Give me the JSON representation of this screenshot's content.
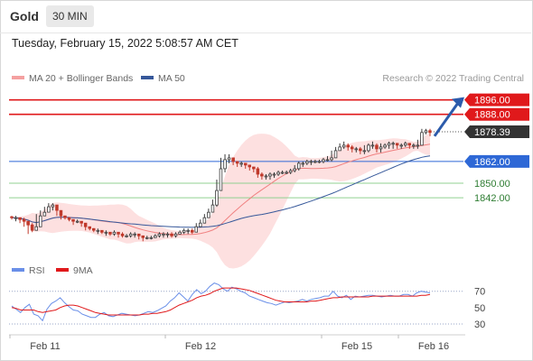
{
  "header": {
    "symbol": "Gold",
    "timeframe": "30 MIN"
  },
  "timestamp": "Tuesday, February 15, 2022 5:08:57 AM CET",
  "legend": {
    "item1": "MA 20 + Bollinger Bands",
    "item2": "MA 50"
  },
  "attribution": "Research © 2022 Trading Central",
  "rsi_legend": {
    "item1": "RSI",
    "item2": "9MA"
  },
  "colors": {
    "resistance": "#e0191b",
    "support": "#90d090",
    "current": "#333333",
    "pivot": "#2e68d6",
    "ma20": "#f08080",
    "bands": "#fde0e0",
    "ma50": "#36589a",
    "rsi": "#6a8fe8",
    "rsi_ma": "#e0191b",
    "arrow": "#2c5bab"
  },
  "chart_data": [
    {
      "type": "candlestick",
      "title": "Gold",
      "xlabel": "",
      "ylabel": "",
      "ylim": [
        1806.7,
        1901.3
      ],
      "x_ticks": [
        "Feb 11",
        "Feb 12",
        "Feb 15",
        "Feb 16"
      ],
      "levels": [
        {
          "value": 1896.0,
          "label": "1896.00",
          "role": "resistance"
        },
        {
          "value": 1888.0,
          "label": "1888.00",
          "role": "resistance"
        },
        {
          "value": 1878.39,
          "label": "1878.39",
          "role": "current"
        },
        {
          "value": 1862.0,
          "label": "1862.00",
          "role": "pivot"
        },
        {
          "value": 1850.0,
          "label": "1850.00",
          "role": "support"
        },
        {
          "value": 1842.0,
          "label": "1842.00",
          "role": "support"
        }
      ],
      "close": [
        1831,
        1831,
        1830,
        1829,
        1827,
        1824,
        1826,
        1832,
        1834,
        1837,
        1838,
        1835,
        1832,
        1831,
        1830,
        1829,
        1829,
        1828,
        1826,
        1825,
        1824,
        1824,
        1823,
        1823,
        1822,
        1823,
        1822,
        1821,
        1821,
        1822,
        1822,
        1821,
        1820,
        1820,
        1820,
        1821,
        1822,
        1822,
        1822,
        1821,
        1822,
        1823,
        1824,
        1824,
        1823,
        1826,
        1828,
        1831,
        1834,
        1838,
        1846,
        1858,
        1863,
        1864,
        1862,
        1861,
        1861,
        1860,
        1859,
        1858,
        1855,
        1854,
        1854,
        1855,
        1855,
        1856,
        1856,
        1856,
        1857,
        1858,
        1861,
        1861,
        1862,
        1862,
        1862,
        1862,
        1863,
        1863,
        1864,
        1868,
        1870,
        1871,
        1870,
        1869,
        1869,
        1868,
        1868,
        1871,
        1871,
        1869,
        1870,
        1871,
        1872,
        1872,
        1871,
        1871,
        1872,
        1871,
        1871,
        1871,
        1878,
        1879,
        1878
      ],
      "high": [
        1832,
        1832,
        1831,
        1831,
        1829,
        1828,
        1833,
        1835,
        1837,
        1839,
        1839,
        1837,
        1833,
        1832,
        1831,
        1830,
        1830,
        1829,
        1828,
        1826,
        1825,
        1825,
        1824,
        1824,
        1823,
        1824,
        1823,
        1823,
        1822,
        1823,
        1823,
        1822,
        1821,
        1821,
        1821,
        1822,
        1823,
        1823,
        1823,
        1823,
        1823,
        1824,
        1825,
        1825,
        1825,
        1828,
        1830,
        1833,
        1836,
        1841,
        1852,
        1864,
        1866,
        1866,
        1864,
        1862,
        1862,
        1861,
        1860,
        1859,
        1859,
        1856,
        1855,
        1856,
        1856,
        1857,
        1857,
        1857,
        1858,
        1860,
        1862,
        1862,
        1863,
        1863,
        1863,
        1863,
        1864,
        1865,
        1868,
        1870,
        1872,
        1873,
        1872,
        1871,
        1870,
        1870,
        1871,
        1872,
        1873,
        1872,
        1872,
        1872,
        1873,
        1873,
        1872,
        1872,
        1873,
        1872,
        1872,
        1874,
        1880,
        1880,
        1880
      ],
      "low": [
        1830,
        1829,
        1828,
        1826,
        1822,
        1823,
        1824,
        1831,
        1833,
        1834,
        1835,
        1832,
        1830,
        1830,
        1829,
        1827,
        1828,
        1826,
        1824,
        1824,
        1823,
        1822,
        1822,
        1821,
        1821,
        1821,
        1820,
        1820,
        1820,
        1820,
        1820,
        1819,
        1818,
        1819,
        1819,
        1820,
        1820,
        1820,
        1820,
        1820,
        1820,
        1822,
        1822,
        1822,
        1822,
        1823,
        1826,
        1828,
        1831,
        1834,
        1837,
        1846,
        1856,
        1861,
        1860,
        1859,
        1859,
        1858,
        1857,
        1856,
        1853,
        1852,
        1852,
        1852,
        1853,
        1854,
        1855,
        1855,
        1855,
        1856,
        1857,
        1859,
        1860,
        1860,
        1861,
        1861,
        1861,
        1862,
        1862,
        1864,
        1868,
        1869,
        1868,
        1867,
        1867,
        1866,
        1866,
        1867,
        1869,
        1867,
        1867,
        1869,
        1869,
        1869,
        1869,
        1869,
        1870,
        1869,
        1869,
        1869,
        1871,
        1877,
        1876
      ]
    },
    {
      "type": "line",
      "title": "RSI",
      "ylim": [
        20,
        84
      ],
      "y_ticks": [
        70,
        50,
        30
      ],
      "series": [
        {
          "name": "RSI",
          "values": [
            52,
            48,
            44,
            50,
            54,
            42,
            40,
            34,
            48,
            55,
            58,
            62,
            56,
            51,
            47,
            46,
            42,
            40,
            38,
            38,
            42,
            44,
            40,
            39,
            41,
            43,
            42,
            41,
            40,
            41,
            43,
            45,
            44,
            46,
            49,
            52,
            58,
            62,
            68,
            63,
            58,
            66,
            72,
            67,
            70,
            76,
            80,
            78,
            73,
            70,
            75,
            73,
            70,
            68,
            64,
            62,
            60,
            58,
            56,
            55,
            53,
            55,
            57,
            56,
            57,
            58,
            60,
            58,
            60,
            61,
            62,
            64,
            64,
            70,
            64,
            62,
            65,
            60,
            64,
            63,
            64,
            65,
            65,
            64,
            63,
            64,
            65,
            64,
            64,
            66,
            66,
            64,
            68,
            70,
            69,
            68
          ]
        },
        {
          "name": "9MA",
          "values": [
            50,
            49,
            47,
            47,
            47,
            47,
            45,
            44,
            45,
            46,
            47,
            50,
            52,
            53,
            53,
            52,
            50,
            48,
            46,
            44,
            43,
            42,
            41,
            41,
            41,
            41,
            41,
            41,
            41,
            41,
            42,
            42,
            43,
            43,
            44,
            45,
            47,
            50,
            53,
            55,
            57,
            59,
            62,
            64,
            65,
            67,
            70,
            72,
            74,
            74,
            74,
            74,
            73,
            72,
            71,
            69,
            67,
            65,
            63,
            61,
            59,
            58,
            57,
            57,
            57,
            57,
            57,
            57,
            58,
            58,
            59,
            60,
            61,
            62,
            62,
            63,
            63,
            63,
            63,
            63,
            63,
            63,
            64,
            64,
            64,
            64,
            64,
            64,
            64,
            64,
            64,
            64,
            64,
            65,
            65,
            66
          ]
        }
      ]
    }
  ]
}
